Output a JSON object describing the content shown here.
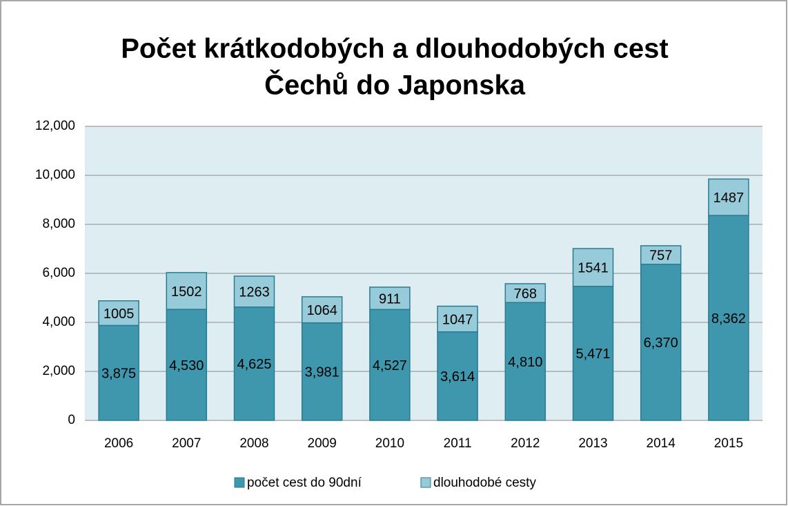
{
  "chart_data": {
    "type": "stacked_bar",
    "title": [
      "Počet krátkodobých a dlouhodobých cest",
      "Čechů do Japonska"
    ],
    "categories": [
      "2006",
      "2007",
      "2008",
      "2009",
      "2010",
      "2011",
      "2012",
      "2013",
      "2014",
      "2015"
    ],
    "series": [
      {
        "name": "počet cest do 90dní",
        "color": "#3f97ad",
        "stroke": "#2a7a90",
        "values": [
          3875,
          4530,
          4625,
          3981,
          4527,
          3614,
          4810,
          5471,
          6370,
          8362
        ],
        "value_labels": [
          "3,875",
          "4,530",
          "4,625",
          "3,981",
          "4,527",
          "3,614",
          "4,810",
          "5,471",
          "6,370",
          "8,362"
        ]
      },
      {
        "name": "dlouhodobé cesty",
        "color": "#98cbd9",
        "stroke": "#2a7a90",
        "values": [
          1005,
          1502,
          1263,
          1064,
          911,
          1047,
          768,
          1541,
          757,
          1487
        ]
      }
    ],
    "ylim": [
      0,
      12000
    ],
    "yticks": [
      0,
      {
        "value": 2000,
        "label": "2,000"
      },
      {
        "value": 4000,
        "label": "4,000"
      },
      {
        "value": 6000,
        "label": "6,000"
      },
      {
        "value": 8000,
        "label": "8,000"
      },
      {
        "value": 10000,
        "label": "10,000"
      },
      {
        "value": 12000,
        "label": "12,000"
      }
    ],
    "grid": true,
    "legend": "bottom"
  }
}
